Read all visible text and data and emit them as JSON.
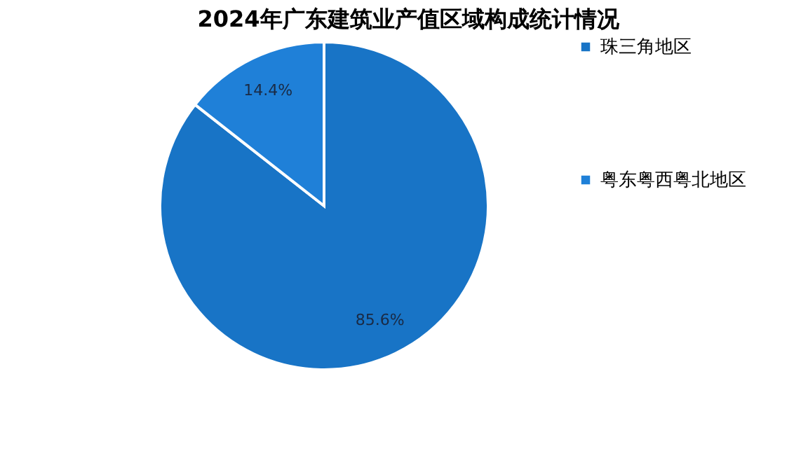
{
  "chart_data": {
    "type": "pie",
    "title": "2024年广东建筑业产值区域构成统计情况",
    "categories": [
      "珠三角地区",
      "粤东粤西粤北地区"
    ],
    "values": [
      85.6,
      14.4
    ],
    "colors": [
      "#1874c6",
      "#1f80d8"
    ],
    "value_labels": [
      "85.6%",
      "14.4%"
    ],
    "legend": "right"
  }
}
